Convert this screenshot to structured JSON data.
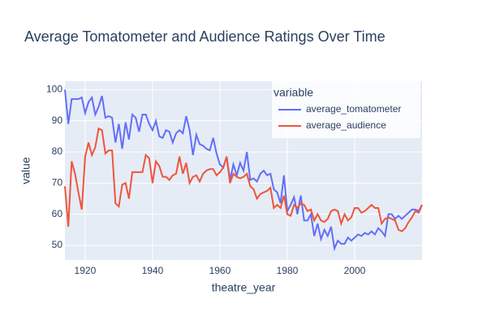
{
  "chart_data": {
    "type": "line",
    "title": "Average Tomatometer and Audience Ratings Over Time",
    "x_label": "theatre_year",
    "y_label": "value",
    "legend_title": "variable",
    "legend": "top right",
    "grid": true,
    "x": [
      1914,
      1915,
      1916,
      1917,
      1918,
      1919,
      1920,
      1921,
      1922,
      1923,
      1924,
      1925,
      1926,
      1927,
      1928,
      1929,
      1930,
      1931,
      1932,
      1933,
      1934,
      1935,
      1936,
      1937,
      1938,
      1939,
      1940,
      1941,
      1942,
      1943,
      1944,
      1945,
      1946,
      1947,
      1948,
      1949,
      1950,
      1951,
      1952,
      1953,
      1954,
      1955,
      1956,
      1957,
      1958,
      1959,
      1960,
      1961,
      1962,
      1963,
      1964,
      1965,
      1966,
      1967,
      1968,
      1969,
      1970,
      1971,
      1972,
      1973,
      1974,
      1975,
      1976,
      1977,
      1978,
      1979,
      1980,
      1981,
      1982,
      1983,
      1984,
      1985,
      1986,
      1987,
      1988,
      1989,
      1990,
      1991,
      1992,
      1993,
      1994,
      1995,
      1996,
      1997,
      1998,
      1999,
      2000,
      2001,
      2002,
      2003,
      2004,
      2005,
      2006,
      2007,
      2008,
      2009,
      2010,
      2011,
      2012,
      2013,
      2014,
      2015,
      2016,
      2017,
      2018,
      2019,
      2020
    ],
    "series": [
      {
        "name": "average_tomatometer",
        "color": "#636efa",
        "values": [
          100,
          89,
          97,
          97,
          97,
          97.5,
          92.5,
          96,
          97.5,
          92,
          94.5,
          98,
          91,
          91.5,
          91,
          83,
          89,
          81,
          89.5,
          84,
          92,
          91,
          86.5,
          92,
          92,
          89,
          87,
          90,
          85,
          84.5,
          87,
          86.5,
          83,
          86,
          87,
          86,
          91.5,
          87,
          79,
          85.5,
          82.5,
          82,
          81,
          80.5,
          84.5,
          79.5,
          76,
          75,
          78.5,
          71,
          76,
          72.5,
          76.5,
          74,
          80,
          71,
          71.5,
          70.5,
          73,
          74,
          72.5,
          73,
          68,
          67,
          63.5,
          72.5,
          61,
          63,
          65.5,
          60,
          66,
          58,
          58,
          60,
          53,
          57,
          52,
          55,
          53,
          56,
          49,
          51.5,
          50.5,
          50.5,
          52.5,
          51.5,
          52.5,
          53.5,
          53,
          54,
          53.5,
          54.5,
          53.5,
          55.5,
          54.5,
          53,
          60,
          60,
          58.5,
          59.5,
          58.5,
          59.5,
          60.5,
          61.5,
          61.5,
          61,
          63
        ]
      },
      {
        "name": "average_audience",
        "color": "#ef553b",
        "values": [
          69,
          56,
          77,
          73,
          67,
          61.5,
          78.5,
          83,
          79,
          81.5,
          87.5,
          87,
          79.5,
          80.5,
          80.5,
          63.5,
          62.5,
          69.5,
          70,
          65,
          73.5,
          73.5,
          73.5,
          73.5,
          79,
          78,
          70,
          77,
          75.5,
          72,
          72,
          71,
          72.5,
          73,
          78.5,
          73,
          76.5,
          70,
          72,
          72.5,
          70.5,
          73,
          74,
          74.5,
          74.5,
          72.5,
          73.5,
          75,
          78.5,
          70,
          73,
          72,
          71.5,
          72,
          73,
          69,
          68,
          65,
          66.5,
          67,
          67.5,
          68.5,
          62,
          63,
          62,
          66,
          60,
          59.5,
          63,
          62,
          63.5,
          63,
          61,
          61.5,
          58,
          60,
          58,
          57.5,
          58.5,
          61,
          61.5,
          61,
          57,
          60,
          58,
          59,
          62,
          62,
          60.5,
          61,
          62,
          63,
          62,
          62,
          57,
          58.5,
          59,
          58.5,
          58,
          55,
          54.5,
          55.5,
          57.5,
          59,
          61,
          60.5,
          63
        ]
      }
    ],
    "xlim": [
      1914,
      2020
    ],
    "xticks": [
      1920,
      1940,
      1960,
      1980,
      2000
    ],
    "ylim": [
      45.3,
      102.7
    ],
    "yticks": [
      50,
      60,
      70,
      80,
      90,
      100
    ]
  }
}
